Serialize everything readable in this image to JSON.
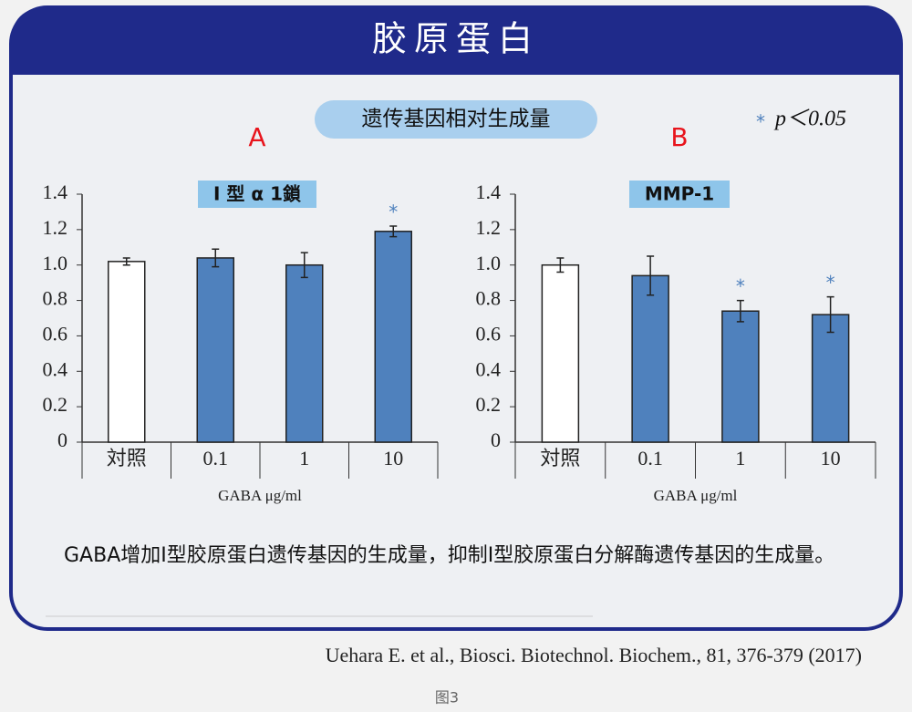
{
  "header": {
    "title": "胶原蛋白"
  },
  "subtitle": "遗传基因相对生成量",
  "significance_note": {
    "marker": "*",
    "text": "p＜0.05"
  },
  "chart_data": [
    {
      "type": "bar",
      "panel_label": "A",
      "title": "I 型 α 1鎖",
      "categories": [
        "対照",
        "0.1",
        "1",
        "10"
      ],
      "values": [
        1.02,
        1.04,
        1.0,
        1.19
      ],
      "errors": [
        0.02,
        0.05,
        0.07,
        0.03
      ],
      "significance": [
        null,
        null,
        null,
        "*"
      ],
      "colors": [
        "#ffffff",
        "#4f81bd",
        "#4f81bd",
        "#4f81bd"
      ],
      "x_label": "GABA μg/ml",
      "ylim": [
        0,
        1.4
      ],
      "yticks": [
        0,
        0.2,
        0.4,
        0.6,
        0.8,
        {
          "value": 1,
          "label": "1.0"
        },
        1.2,
        1.4
      ]
    },
    {
      "type": "bar",
      "panel_label": "B",
      "title": "MMP-1",
      "categories": [
        "対照",
        "0.1",
        "1",
        "10"
      ],
      "values": [
        1.0,
        0.94,
        0.74,
        0.72
      ],
      "errors": [
        0.04,
        0.11,
        0.06,
        0.1
      ],
      "significance": [
        null,
        null,
        "*",
        "*"
      ],
      "colors": [
        "#ffffff",
        "#4f81bd",
        "#4f81bd",
        "#4f81bd"
      ],
      "x_label": "GABA μg/ml",
      "ylim": [
        0,
        1.4
      ],
      "yticks": [
        0,
        0.2,
        0.4,
        0.6,
        0.8,
        {
          "value": 1,
          "label": "1.0"
        },
        1.2,
        1.4
      ]
    }
  ],
  "caption": "GABA增加I型胶原蛋白遗传基因的生成量，抑制I型胶原蛋白分解酶遗传基因的生成量。",
  "citation": "Uehara E. et al., Biosci. Biotechnol. Biochem., 81, 376-379 (2017)",
  "figure_label": "图3"
}
